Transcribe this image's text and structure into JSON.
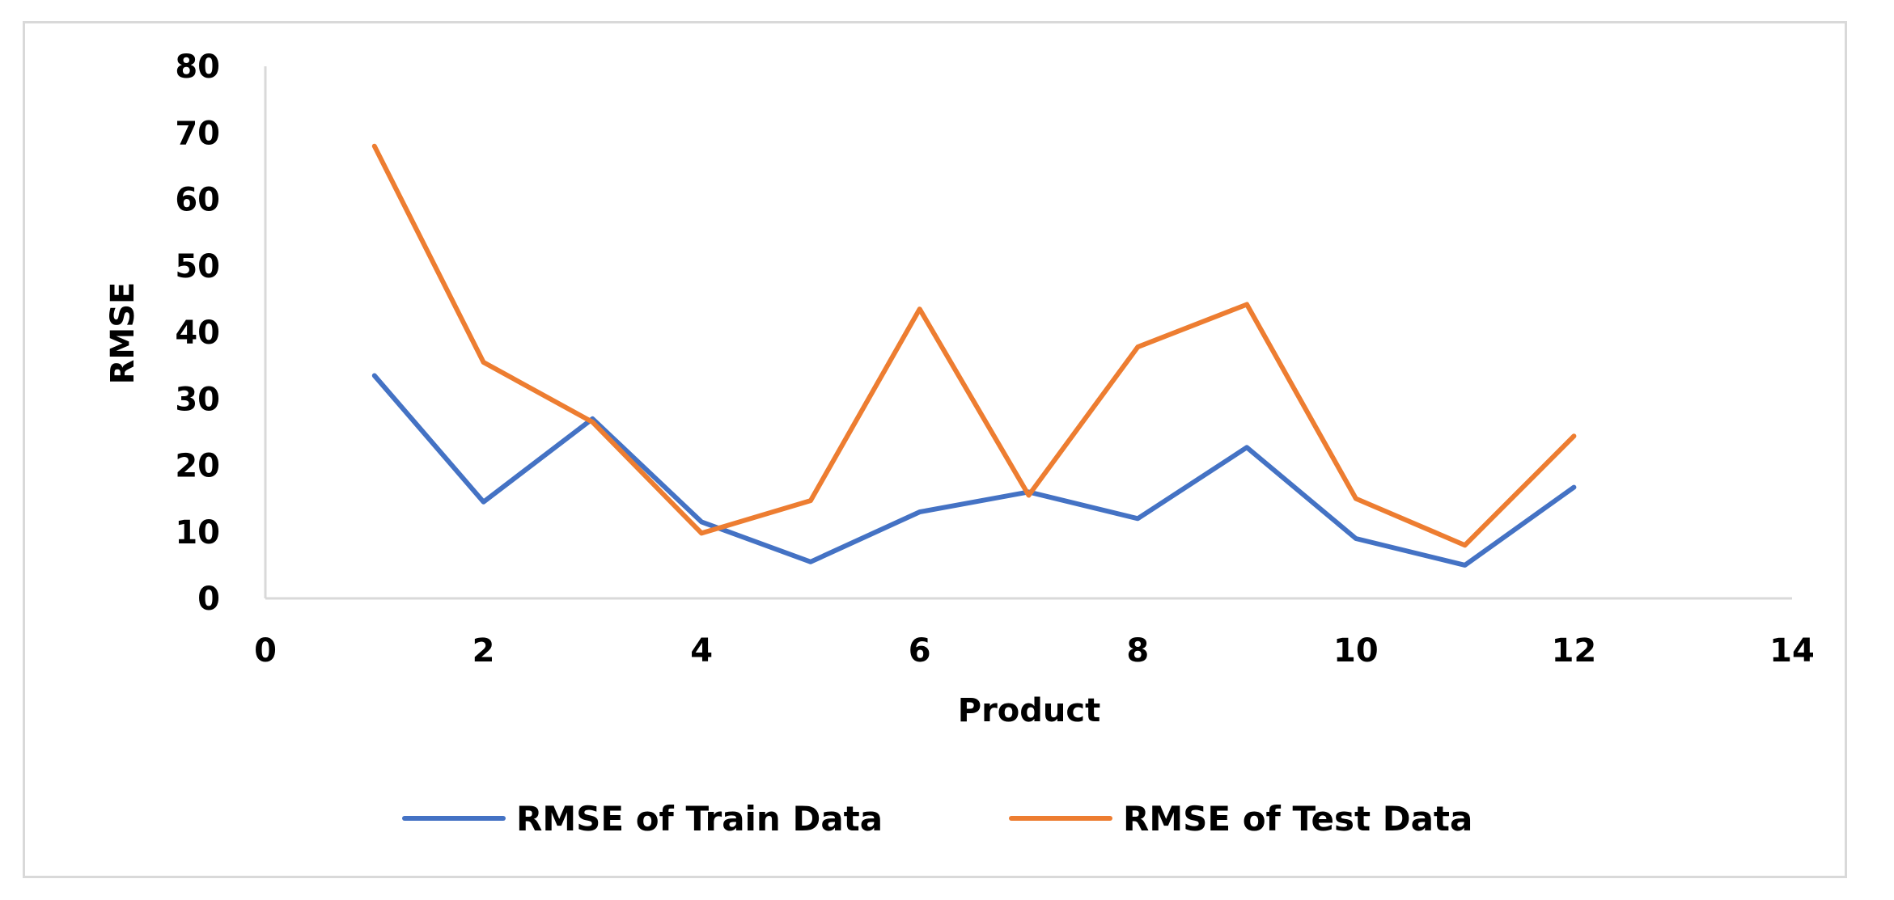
{
  "chart_data": {
    "type": "line",
    "title": "",
    "xlabel": "Product",
    "ylabel": "RMSE",
    "xlim": [
      0,
      14
    ],
    "ylim": [
      0,
      80
    ],
    "x_ticks": [
      0,
      2,
      4,
      6,
      8,
      10,
      12,
      14
    ],
    "y_ticks": [
      0,
      10,
      20,
      30,
      40,
      50,
      60,
      70,
      80
    ],
    "grid": false,
    "legend_position": "bottom",
    "x": [
      1,
      2,
      3,
      4,
      5,
      6,
      7,
      8,
      9,
      10,
      11,
      12
    ],
    "series": [
      {
        "name": "RMSE of Train Data",
        "color": "#4472C4",
        "values": [
          33.5,
          14.5,
          27,
          11.5,
          5.5,
          13,
          16,
          12,
          22.7,
          9,
          5,
          16.7
        ]
      },
      {
        "name": "RMSE of Test Data",
        "color": "#ED7D31",
        "values": [
          68,
          35.5,
          26.5,
          9.8,
          14.7,
          43.5,
          15.5,
          37.8,
          44.2,
          15,
          8,
          24.4
        ]
      }
    ]
  }
}
